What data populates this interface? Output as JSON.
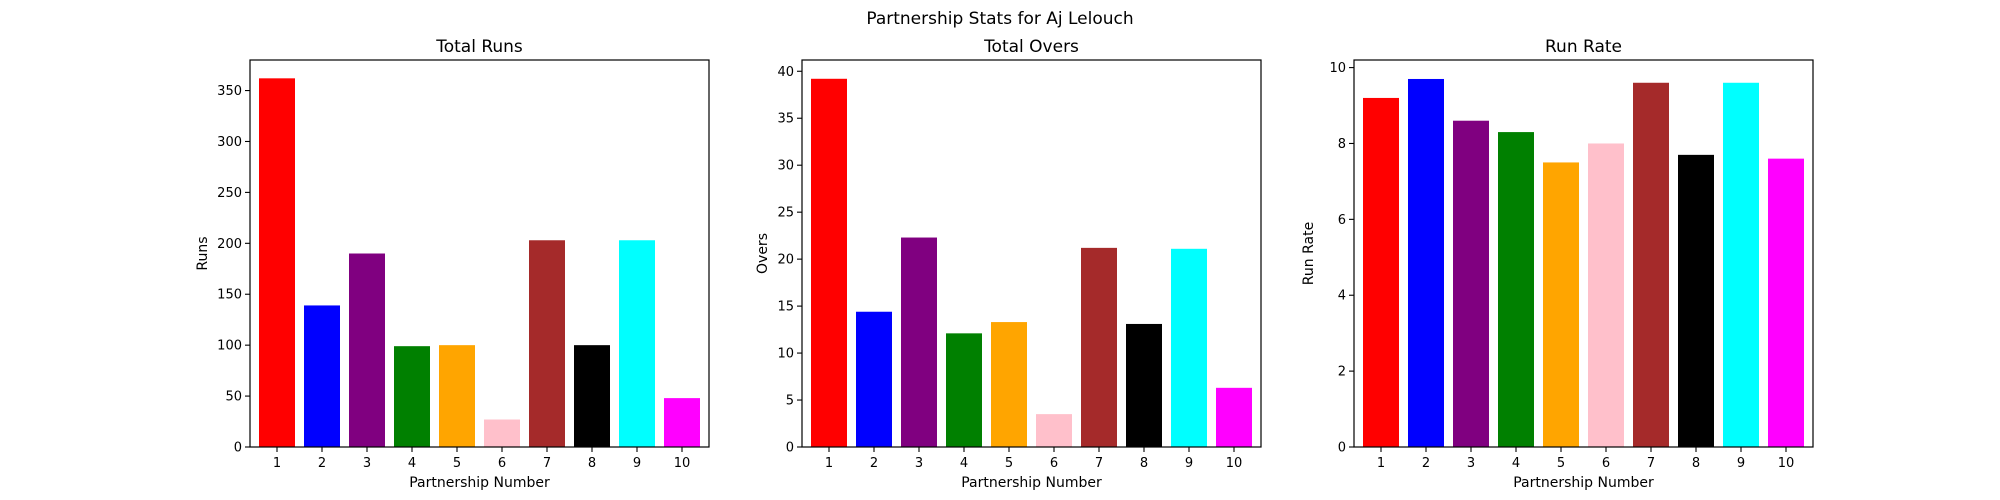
{
  "figure": {
    "suptitle": "Partnership Stats for Aj Lelouch"
  },
  "chart_data": [
    {
      "type": "bar",
      "title": "Total Runs",
      "xlabel": "Partnership Number",
      "ylabel": "Runs",
      "categories": [
        "1",
        "2",
        "3",
        "4",
        "5",
        "6",
        "7",
        "8",
        "9",
        "10"
      ],
      "values": [
        362,
        139,
        190,
        99,
        100,
        27,
        203,
        100,
        203,
        48
      ],
      "colors": [
        "#ff0000",
        "#0000ff",
        "#800080",
        "#008000",
        "#ffa500",
        "#ffc0cb",
        "#a52a2a",
        "#000000",
        "#00ffff",
        "#ff00ff"
      ],
      "ylim": [
        0,
        380
      ],
      "yticks": [
        0,
        50,
        100,
        150,
        200,
        250,
        300,
        350
      ],
      "grid": false,
      "legend": "none"
    },
    {
      "type": "bar",
      "title": "Total Overs",
      "xlabel": "Partnership Number",
      "ylabel": "Overs",
      "categories": [
        "1",
        "2",
        "3",
        "4",
        "5",
        "6",
        "7",
        "8",
        "9",
        "10"
      ],
      "values": [
        39.2,
        14.4,
        22.3,
        12.1,
        13.3,
        3.5,
        21.2,
        13.1,
        21.1,
        6.3
      ],
      "colors": [
        "#ff0000",
        "#0000ff",
        "#800080",
        "#008000",
        "#ffa500",
        "#ffc0cb",
        "#a52a2a",
        "#000000",
        "#00ffff",
        "#ff00ff"
      ],
      "ylim": [
        0,
        41.2
      ],
      "yticks": [
        0,
        5,
        10,
        15,
        20,
        25,
        30,
        35,
        40
      ],
      "grid": false,
      "legend": "none"
    },
    {
      "type": "bar",
      "title": "Run Rate",
      "xlabel": "Partnership Number",
      "ylabel": "Run Rate",
      "categories": [
        "1",
        "2",
        "3",
        "4",
        "5",
        "6",
        "7",
        "8",
        "9",
        "10"
      ],
      "values": [
        9.2,
        9.7,
        8.6,
        8.3,
        7.5,
        8.0,
        9.6,
        7.7,
        9.6,
        7.6
      ],
      "colors": [
        "#ff0000",
        "#0000ff",
        "#800080",
        "#008000",
        "#ffa500",
        "#ffc0cb",
        "#a52a2a",
        "#000000",
        "#00ffff",
        "#ff00ff"
      ],
      "ylim": [
        0,
        10.2
      ],
      "yticks": [
        0,
        2,
        4,
        6,
        8,
        10
      ],
      "grid": false,
      "legend": "none"
    }
  ]
}
